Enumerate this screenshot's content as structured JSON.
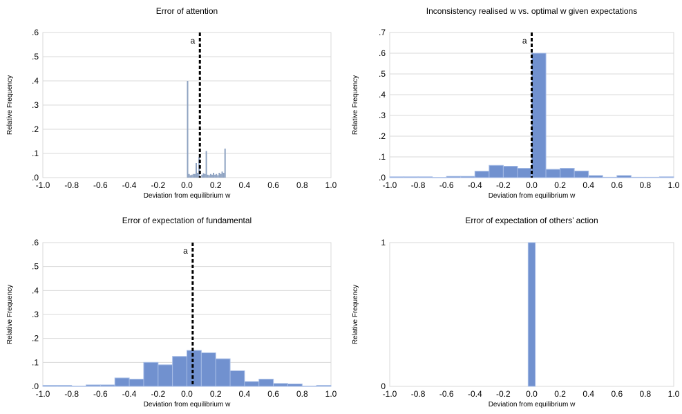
{
  "colors": {
    "bar_fill": "#7191cf",
    "bar_stroke": "#a7bde6",
    "spike": "#8fa3c2",
    "marker": "#000000"
  },
  "chart_data": [
    {
      "type": "bar",
      "title": "Error of attention",
      "xlabel": "Deviation from equilibrium w",
      "ylabel": "Relative Frequency",
      "xlim": [
        -1.0,
        1.0
      ],
      "ylim": [
        0,
        0.6
      ],
      "x_ticks": [
        "-1.0",
        "-0.8",
        "-0.6",
        "-0.4",
        "-0.2",
        "0.0",
        "0.2",
        "0.4",
        "0.6",
        "0.8",
        "1.0"
      ],
      "y_ticks": [
        ".0",
        ".1",
        ".2",
        ".3",
        ".4",
        ".5",
        ".6"
      ],
      "grid": true,
      "marker": {
        "x": 0.09,
        "label": "a"
      },
      "bar_width": 0.01,
      "bars": [
        {
          "x": 0.0,
          "value": 0.4
        },
        {
          "x": 0.01,
          "value": 0.015
        },
        {
          "x": 0.02,
          "value": 0.01
        },
        {
          "x": 0.03,
          "value": 0.012
        },
        {
          "x": 0.04,
          "value": 0.015
        },
        {
          "x": 0.05,
          "value": 0.015
        },
        {
          "x": 0.06,
          "value": 0.06
        },
        {
          "x": 0.07,
          "value": 0.02
        },
        {
          "x": 0.08,
          "value": 0.085
        },
        {
          "x": 0.1,
          "value": 0.012
        },
        {
          "x": 0.11,
          "value": 0.018
        },
        {
          "x": 0.12,
          "value": 0.015
        },
        {
          "x": 0.13,
          "value": 0.11
        },
        {
          "x": 0.14,
          "value": 0.012
        },
        {
          "x": 0.15,
          "value": 0.01
        },
        {
          "x": 0.16,
          "value": 0.015
        },
        {
          "x": 0.17,
          "value": 0.012
        },
        {
          "x": 0.18,
          "value": 0.02
        },
        {
          "x": 0.19,
          "value": 0.012
        },
        {
          "x": 0.2,
          "value": 0.015
        },
        {
          "x": 0.21,
          "value": 0.01
        },
        {
          "x": 0.22,
          "value": 0.02
        },
        {
          "x": 0.23,
          "value": 0.015
        },
        {
          "x": 0.24,
          "value": 0.025
        },
        {
          "x": 0.25,
          "value": 0.02
        },
        {
          "x": 0.26,
          "value": 0.12
        }
      ]
    },
    {
      "type": "bar",
      "title": "Inconsistency realised w vs. optimal w given expectations",
      "xlabel": "Deviation from equilibrium w",
      "ylabel": "Relative Frequency",
      "xlim": [
        -1.0,
        1.0
      ],
      "ylim": [
        0,
        0.7
      ],
      "x_ticks": [
        "-1.0",
        "-0.8",
        "-0.6",
        "-0.4",
        "-0.2",
        "0.0",
        "0.2",
        "0.4",
        "0.6",
        "0.8",
        "1.0"
      ],
      "y_ticks": [
        ".0",
        ".1",
        ".2",
        ".3",
        ".4",
        ".5",
        ".6",
        ".7"
      ],
      "grid": true,
      "marker": {
        "x": 0.0,
        "label": "a"
      },
      "bar_width": 0.1,
      "bars": [
        {
          "x": -1.0,
          "value": 0.004
        },
        {
          "x": -0.9,
          "value": 0.004
        },
        {
          "x": -0.8,
          "value": 0.004
        },
        {
          "x": -0.7,
          "value": 0.001
        },
        {
          "x": -0.6,
          "value": 0.006
        },
        {
          "x": -0.5,
          "value": 0.006
        },
        {
          "x": -0.4,
          "value": 0.031
        },
        {
          "x": -0.3,
          "value": 0.059
        },
        {
          "x": -0.2,
          "value": 0.055
        },
        {
          "x": -0.1,
          "value": 0.045
        },
        {
          "x": 0.0,
          "value": 0.6
        },
        {
          "x": 0.1,
          "value": 0.04
        },
        {
          "x": 0.2,
          "value": 0.045
        },
        {
          "x": 0.3,
          "value": 0.032
        },
        {
          "x": 0.4,
          "value": 0.01
        },
        {
          "x": 0.5,
          "value": 0.002
        },
        {
          "x": 0.6,
          "value": 0.01
        },
        {
          "x": 0.7,
          "value": 0.002
        },
        {
          "x": 0.8,
          "value": 0.002
        },
        {
          "x": 0.9,
          "value": 0.004
        }
      ]
    },
    {
      "type": "bar",
      "title": "Error of expectation of fundamental",
      "xlabel": "Deviation from equilibrium w",
      "ylabel": "Relative Frequency",
      "xlim": [
        -1.0,
        1.0
      ],
      "ylim": [
        0,
        0.6
      ],
      "x_ticks": [
        "-1.0",
        "-0.8",
        "-0.6",
        "-0.4",
        "-0.2",
        "0.0",
        "0.2",
        "0.4",
        "0.6",
        "0.8",
        "1.0"
      ],
      "y_ticks": [
        ".0",
        ".1",
        ".2",
        ".3",
        ".4",
        ".5",
        ".6"
      ],
      "grid": true,
      "marker": {
        "x": 0.04,
        "label": "a"
      },
      "bar_width": 0.1,
      "bars": [
        {
          "x": -1.0,
          "value": 0.004
        },
        {
          "x": -0.9,
          "value": 0.004
        },
        {
          "x": -0.8,
          "value": 0.001
        },
        {
          "x": -0.7,
          "value": 0.006
        },
        {
          "x": -0.6,
          "value": 0.006
        },
        {
          "x": -0.5,
          "value": 0.035
        },
        {
          "x": -0.4,
          "value": 0.03
        },
        {
          "x": -0.3,
          "value": 0.1
        },
        {
          "x": -0.2,
          "value": 0.09
        },
        {
          "x": -0.1,
          "value": 0.125
        },
        {
          "x": 0.0,
          "value": 0.15
        },
        {
          "x": 0.1,
          "value": 0.14
        },
        {
          "x": 0.2,
          "value": 0.115
        },
        {
          "x": 0.3,
          "value": 0.065
        },
        {
          "x": 0.4,
          "value": 0.02
        },
        {
          "x": 0.5,
          "value": 0.03
        },
        {
          "x": 0.6,
          "value": 0.012
        },
        {
          "x": 0.7,
          "value": 0.01
        },
        {
          "x": 0.8,
          "value": 0.001
        },
        {
          "x": 0.9,
          "value": 0.004
        }
      ]
    },
    {
      "type": "bar",
      "title": "Error of expectation of others’ action",
      "xlabel": "Deviation from equilibrium w",
      "ylabel": "Relative Frequency",
      "xlim": [
        -1.0,
        1.0
      ],
      "ylim": [
        0,
        1
      ],
      "x_ticks": [
        "-1.0",
        "-0.8",
        "-0.6",
        "-0.4",
        "-0.2",
        "0.0",
        "0.2",
        "0.4",
        "0.6",
        "0.8",
        "1.0"
      ],
      "y_ticks": [
        "0",
        "1"
      ],
      "grid": false,
      "marker": null,
      "bar_width": 0.05,
      "bars": [
        {
          "x": -0.025,
          "value": 1.0
        }
      ]
    }
  ]
}
